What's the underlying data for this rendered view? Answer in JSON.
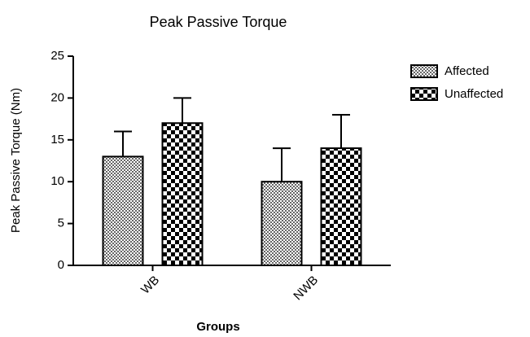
{
  "chart_data": {
    "type": "bar",
    "title": "Peak Passive Torque",
    "x_label": "Groups",
    "y_label": "Peak Passive Torque (Nm)",
    "categories": [
      "WB",
      "NWB"
    ],
    "series": [
      {
        "name": "Affected",
        "color": "#666666",
        "values": [
          13,
          10
        ],
        "errors": [
          3,
          4
        ]
      },
      {
        "name": "Unaffected",
        "color": "#000000",
        "values": [
          17,
          14
        ],
        "errors": [
          3,
          4
        ]
      }
    ],
    "ylim": [
      0,
      25
    ],
    "yticks": [
      0,
      5,
      10,
      15,
      20,
      25
    ],
    "grid": false,
    "legend": "upper right"
  }
}
